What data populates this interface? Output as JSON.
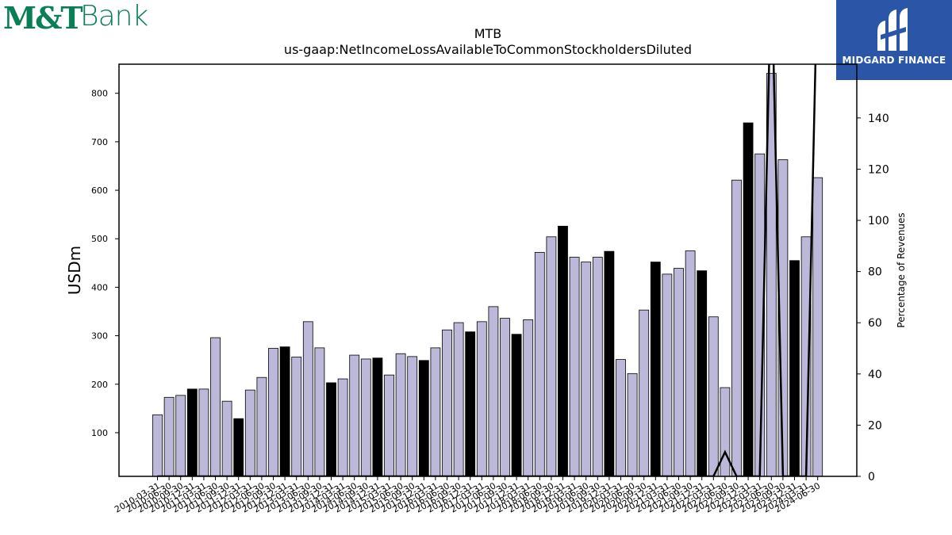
{
  "logos": {
    "left_mark": "M&T",
    "left_word": "Bank",
    "right_brand": "MIDGARD FINANCE"
  },
  "colors": {
    "bar_default": "#bcb8da",
    "bar_q4": "#000000",
    "bar_stroke": "#000000",
    "line": "#000000",
    "brand_green": "#0a7f55",
    "brand_blue": "#2b56a7"
  },
  "chart_data": {
    "type": "bar",
    "title": "MTB",
    "subtitle": "us-gaap:NetIncomeLossAvailableToCommonStockholdersDiluted",
    "ylabel": "USDm",
    "y2label": "Percentage of Revenues",
    "ylim": [
      10,
      860
    ],
    "y2lim": [
      0,
      161
    ],
    "yticks": [
      100,
      200,
      300,
      400,
      500,
      600,
      700,
      800
    ],
    "y2ticks": [
      0,
      20,
      40,
      60,
      80,
      100,
      120,
      140
    ],
    "categories": [
      "2010-03-31",
      "2010-06-30",
      "2010-09-30",
      "2010-12-31",
      "2011-03-31",
      "2011-06-30",
      "2011-09-30",
      "2011-12-31",
      "2012-03-31",
      "2012-06-30",
      "2012-09-30",
      "2012-12-31",
      "2013-03-31",
      "2013-06-30",
      "2013-09-30",
      "2013-12-31",
      "2014-03-31",
      "2014-06-30",
      "2014-09-30",
      "2014-12-31",
      "2015-03-31",
      "2015-06-30",
      "2015-09-30",
      "2015-12-31",
      "2016-03-31",
      "2016-06-30",
      "2016-09-30",
      "2016-12-31",
      "2017-03-31",
      "2017-06-30",
      "2017-09-30",
      "2017-12-31",
      "2018-03-31",
      "2018-06-30",
      "2018-09-30",
      "2018-12-31",
      "2019-03-31",
      "2019-06-30",
      "2019-09-30",
      "2019-12-31",
      "2020-03-31",
      "2020-06-30",
      "2020-09-30",
      "2020-12-31",
      "2021-03-31",
      "2021-06-30",
      "2021-09-30",
      "2021-12-31",
      "2022-03-31",
      "2022-06-30",
      "2022-09-30",
      "2022-12-31",
      "2023-03-31",
      "2023-06-30",
      "2023-09-30",
      "2023-12-31",
      "2024-03-31",
      "2024-06-30"
    ],
    "xtick_labels": [
      "2010-03-31",
      "2010-06-30",
      "2010-09-30",
      "2010-12-31",
      "2011-03-31",
      "2011-06-30",
      "2011-09-30",
      "2011-12-31",
      "2012-03-31",
      "2012-06-30",
      "2012-09-30",
      "2012-12-31",
      "2013-03-31",
      "2013-06-30",
      "2013-09-30",
      "2013-12-31",
      "2014-03-31",
      "2014-06-30",
      "2014-09-30",
      "2014-12-31",
      "2015-03-31",
      "2015-06-30",
      "2015-09-30",
      "2015-12-31",
      "2016-03-31",
      "2016-06-30",
      "2016-09-30",
      "2016-12-31",
      "2017-03-31",
      "2017-06-30",
      "2017-09-30",
      "2017-12-31",
      "2018-03-31",
      "2018-06-30",
      "2018-09-30",
      "2018-12-31",
      "2019-03-31",
      "2019-06-30",
      "2019-09-30",
      "2019-12-31",
      "2020-03-31",
      "2020-06-30",
      "2020-09-30",
      "2020-12-31",
      "2021-03-31",
      "2021-06-30",
      "2021-09-30",
      "2021-12-31",
      "2022-03-31",
      "2022-06-30",
      "2022-09-30",
      "2022-12-31",
      "2023-03-31",
      "2023-06-30",
      "2023-09-30",
      "2023-12-31",
      "2024-03-31",
      "2024-06-30"
    ],
    "values": [
      137,
      173,
      177,
      190,
      190,
      296,
      165,
      129,
      188,
      214,
      274,
      277,
      256,
      329,
      275,
      203,
      211,
      260,
      252,
      254,
      219,
      263,
      257,
      249,
      275,
      312,
      327,
      308,
      329,
      360,
      336,
      303,
      333,
      472,
      504,
      526,
      462,
      452,
      462,
      474,
      251,
      222,
      353,
      452,
      427,
      439,
      475,
      434,
      339,
      193,
      621,
      739,
      675,
      841,
      663,
      455,
      504,
      626
    ],
    "q4_flags": [
      0,
      0,
      0,
      1,
      0,
      0,
      0,
      1,
      0,
      0,
      0,
      1,
      0,
      0,
      0,
      1,
      0,
      0,
      0,
      1,
      0,
      0,
      0,
      1,
      0,
      0,
      0,
      1,
      0,
      0,
      0,
      1,
      0,
      0,
      0,
      1,
      0,
      0,
      0,
      1,
      0,
      0,
      0,
      1,
      0,
      0,
      0,
      1,
      0,
      0,
      0,
      1,
      0,
      0,
      0,
      1,
      0,
      0
    ],
    "line_series": {
      "name": "",
      "values": [
        0,
        0,
        0,
        0,
        0,
        0,
        0,
        0,
        0,
        0,
        0,
        0,
        0,
        0,
        0,
        0,
        0,
        0,
        0,
        0,
        0,
        0,
        0,
        0,
        0,
        0,
        0,
        0,
        0,
        0,
        0,
        0,
        0,
        0,
        0,
        0,
        0,
        0,
        0,
        0,
        0,
        0,
        0,
        0,
        0,
        0,
        0,
        0,
        0,
        9.5,
        0,
        0,
        0,
        200,
        0,
        0,
        0,
        200
      ]
    },
    "grid": false
  }
}
